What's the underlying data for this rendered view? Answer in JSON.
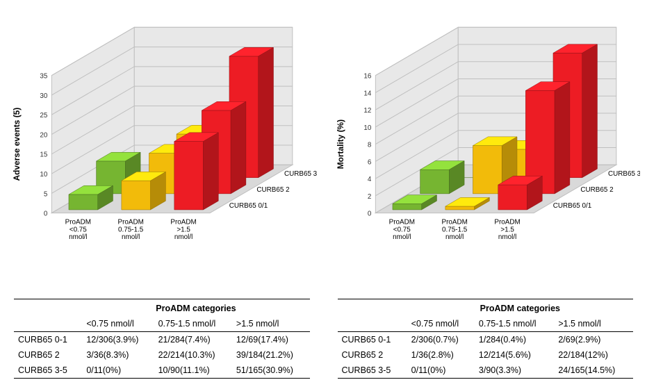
{
  "left_chart": {
    "type": "3d-bar",
    "ylabel": "Adverse events (5)",
    "label_fontsize": 12,
    "ylim": [
      0,
      35
    ],
    "ytick_step": 5,
    "x_categories": [
      "ProADM <0.75 nmol/l",
      "ProADM 0.75-1.5 nmol/l",
      "ProADM >1.5 nmol/l"
    ],
    "z_categories": [
      "CURB65 0/1",
      "CURB65 2",
      "CURB65 3/5"
    ],
    "values": [
      [
        3.9,
        7.4,
        17.4
      ],
      [
        8.3,
        10.3,
        21.2
      ],
      [
        0,
        11.1,
        30.9
      ]
    ],
    "colors_by_x": [
      "#76b531",
      "#f2bb0a",
      "#ed1c24"
    ],
    "tick_fontsize": 10,
    "axis_fontsize": 10,
    "grid_color": "#bfbfbf",
    "floor_color": "#d9d9d9",
    "back_wall_color": "#e8e8e8"
  },
  "right_chart": {
    "type": "3d-bar",
    "ylabel": "Mortality (%)",
    "label_fontsize": 12,
    "ylim": [
      0,
      16
    ],
    "ytick_step": 2,
    "x_categories": [
      "ProADM <0.75 nmol/l",
      "ProADM 0.75-1.5 nmol/l",
      "ProADM >1.5 nmol/l"
    ],
    "z_categories": [
      "CURB65 0/1",
      "CURB65 2",
      "CURB65 3/5"
    ],
    "values": [
      [
        0.7,
        0.4,
        2.9
      ],
      [
        2.8,
        5.6,
        12.0
      ],
      [
        0,
        3.3,
        14.5
      ]
    ],
    "colors_by_x": [
      "#76b531",
      "#f2bb0a",
      "#ed1c24"
    ],
    "tick_fontsize": 10,
    "axis_fontsize": 10,
    "grid_color": "#bfbfbf",
    "floor_color": "#d9d9d9",
    "back_wall_color": "#e8e8e8"
  },
  "left_table": {
    "header_title": "ProADM categories",
    "columns": [
      "",
      "<0.75 nmol/l",
      "0.75-1.5 nmol/l",
      ">1.5 nmol/l"
    ],
    "rows": [
      [
        "CURB65 0-1",
        "12/306(3.9%)",
        "21/284(7.4%)",
        "12/69(17.4%)"
      ],
      [
        "CURB65 2",
        "3/36(8.3%)",
        "22/214(10.3%)",
        "39/184(21.2%)"
      ],
      [
        "CURB65 3-5",
        "0/11(0%)",
        "10/90(11.1%)",
        "51/165(30.9%)"
      ]
    ]
  },
  "right_table": {
    "header_title": "ProADM categories",
    "columns": [
      "",
      "<0.75 nmol/l",
      "0.75-1.5 nmol/l",
      ">1.5 nmol/l"
    ],
    "rows": [
      [
        "CURB65 0-1",
        "2/306(0.7%)",
        "1/284(0.4%)",
        "2/69(2.9%)"
      ],
      [
        "CURB65 2",
        "1/36(2.8%)",
        "12/214(5.6%)",
        "22/184(12%)"
      ],
      [
        "CURB65 3-5",
        "0/11(0%)",
        "3/90(3.3%)",
        "24/165(14.5%)"
      ]
    ]
  }
}
